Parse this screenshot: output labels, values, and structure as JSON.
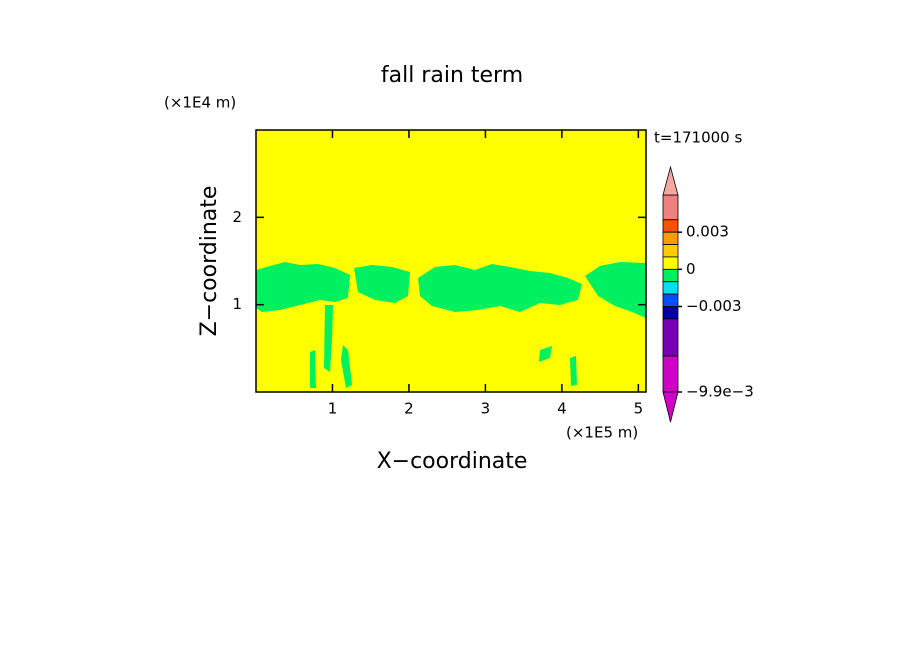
{
  "chart_data": {
    "type": "contour",
    "title": "fall rain term",
    "time_label": "t=171000 s",
    "x_label": "X-coordinate",
    "y_label": "Z-coordinate",
    "x_unit": "(×1E5 m)",
    "y_unit": "(×1E4 m)",
    "xlim": [
      0,
      5.1
    ],
    "ylim": [
      0,
      3
    ],
    "xticks": [
      1,
      2,
      3,
      4,
      5
    ],
    "yticks": [
      1,
      2
    ],
    "background_color": "#ffff00",
    "field_color": "#00f060",
    "colorbar": {
      "lim": [
        -0.0099,
        0.006
      ],
      "levels": [
        0.006,
        0.004,
        0.003,
        0.002,
        0.001,
        0,
        -0.001,
        -0.002,
        -0.003,
        -0.004,
        -0.007,
        -0.0099
      ],
      "colors": [
        "#f08080",
        "#ff5000",
        "#ff9a00",
        "#ffcc00",
        "#ffff00",
        "#00f060",
        "#00e0f0",
        "#0050ff",
        "#0000a0",
        "#7800b4",
        "#d000c8"
      ],
      "over_color": "#f4a8a0",
      "under_color": "#d000c8",
      "ticks": [
        0.003,
        0,
        -0.003,
        {
          "value": -0.0099,
          "label": "-9.9e-3"
        }
      ]
    }
  }
}
